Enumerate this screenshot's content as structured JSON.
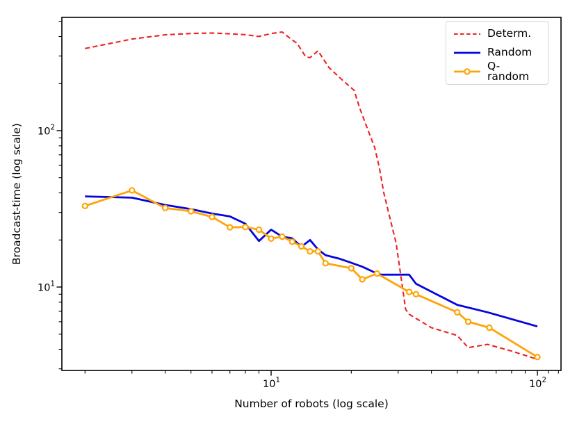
{
  "chart_data": {
    "type": "line",
    "x_scale": "log",
    "y_scale": "log",
    "xlabel": "Number of robots (log scale)",
    "ylabel": "Broadcast-time (log scale)",
    "xlim": [
      1.637,
      122.7
    ],
    "ylim": [
      2.93,
      530
    ],
    "grid": false,
    "legend_position": "upper right",
    "x_ticks_major": [
      {
        "value": 10,
        "base": "10",
        "exp": "1"
      },
      {
        "value": 100,
        "base": "10",
        "exp": "2"
      }
    ],
    "x_ticks_minor": [
      2,
      3,
      4,
      5,
      6,
      7,
      8,
      9,
      20,
      30,
      40,
      50,
      60,
      70,
      80,
      90,
      110,
      120
    ],
    "y_ticks_major": [
      {
        "value": 10,
        "base": "10",
        "exp": "1"
      },
      {
        "value": 100,
        "base": "10",
        "exp": "2"
      }
    ],
    "y_ticks_minor": [
      3,
      4,
      5,
      6,
      7,
      8,
      9,
      20,
      30,
      40,
      50,
      60,
      70,
      80,
      90,
      200,
      300,
      400,
      500
    ],
    "series": [
      {
        "name": "Determ.",
        "color": "#ee2222",
        "style": "dashed",
        "line_width": 2.1,
        "marker": "none",
        "points": [
          [
            2,
            335
          ],
          [
            2.5,
            362
          ],
          [
            3,
            385
          ],
          [
            4,
            410
          ],
          [
            5,
            418
          ],
          [
            6,
            421
          ],
          [
            7,
            416
          ],
          [
            8,
            411
          ],
          [
            9,
            400
          ],
          [
            10,
            418
          ],
          [
            11,
            427
          ],
          [
            12,
            380
          ],
          [
            12.5,
            363
          ],
          [
            13.5,
            296
          ],
          [
            14,
            293
          ],
          [
            15,
            324
          ],
          [
            16.5,
            253
          ],
          [
            18.5,
            211
          ],
          [
            20.5,
            181
          ],
          [
            21.5,
            140
          ],
          [
            23,
            103
          ],
          [
            24.5,
            78
          ],
          [
            25.5,
            58
          ],
          [
            26.5,
            40
          ],
          [
            29.5,
            19
          ],
          [
            32,
            7.2
          ],
          [
            33,
            6.7
          ],
          [
            40,
            5.5
          ],
          [
            50,
            4.9
          ],
          [
            55,
            4.1
          ],
          [
            65,
            4.3
          ],
          [
            80,
            3.9
          ],
          [
            100,
            3.45
          ]
        ]
      },
      {
        "name": "Random",
        "color": "#0505dc",
        "style": "solid",
        "line_width": 2.8,
        "marker": "none",
        "points": [
          [
            2,
            38
          ],
          [
            3,
            37.3
          ],
          [
            4,
            33.5
          ],
          [
            5,
            31.5
          ],
          [
            6,
            29.5
          ],
          [
            7,
            28.3
          ],
          [
            8,
            25.4
          ],
          [
            9,
            19.7
          ],
          [
            10,
            23.3
          ],
          [
            11,
            21.0
          ],
          [
            12,
            20.5
          ],
          [
            13,
            18.1
          ],
          [
            14,
            20.0
          ],
          [
            15,
            17.4
          ],
          [
            16,
            16.0
          ],
          [
            18,
            15.2
          ],
          [
            20,
            14.3
          ],
          [
            22,
            13.5
          ],
          [
            25,
            12.2
          ],
          [
            26,
            12.0
          ],
          [
            33,
            12.0
          ],
          [
            35,
            10.5
          ],
          [
            50,
            7.7
          ],
          [
            65,
            6.9
          ],
          [
            100,
            5.6
          ]
        ]
      },
      {
        "name": "Q-random",
        "color": "#ffa408",
        "style": "solid",
        "line_width": 2.8,
        "marker": "circle-open",
        "points": [
          [
            2,
            33
          ],
          [
            3,
            41.5
          ],
          [
            4,
            32
          ],
          [
            5,
            30.5
          ],
          [
            6,
            28.1
          ],
          [
            7,
            24.1
          ],
          [
            8,
            24.2
          ],
          [
            9,
            23.3
          ],
          [
            10,
            20.4
          ],
          [
            11,
            21.0
          ],
          [
            12,
            19.5
          ],
          [
            13,
            18.2
          ],
          [
            14,
            16.9
          ],
          [
            15,
            16.9
          ],
          [
            16,
            14.2
          ],
          [
            20,
            13.2
          ],
          [
            22,
            11.2
          ],
          [
            25,
            12.2
          ],
          [
            33,
            9.3
          ],
          [
            35,
            9.0
          ],
          [
            50,
            6.9
          ],
          [
            55,
            6.0
          ],
          [
            66,
            5.5
          ],
          [
            100,
            3.57
          ]
        ]
      }
    ]
  },
  "layout_text": {
    "frame_color": "#000000"
  }
}
